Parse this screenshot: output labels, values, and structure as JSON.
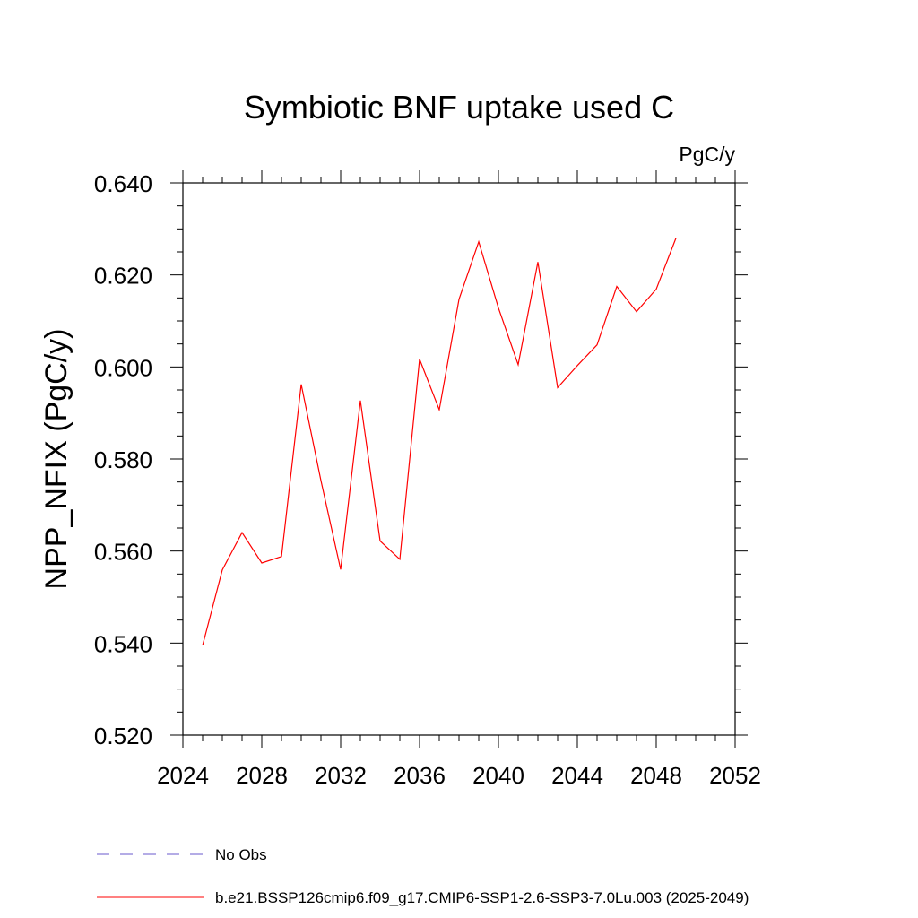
{
  "colors": {
    "series": "#ff0000",
    "obs": "#6a5acd",
    "axis": "#000000"
  },
  "chart_data": {
    "type": "line",
    "title": "Symbiotic BNF uptake used C",
    "units_label": "PgC/y",
    "ylabel": "NPP_NFIX  (PgC/y)",
    "xlabel": "",
    "xlim": [
      2024,
      2052
    ],
    "ylim": [
      0.52,
      0.64
    ],
    "x_ticks": [
      2024,
      2028,
      2032,
      2036,
      2040,
      2044,
      2048,
      2052
    ],
    "x_tick_labels": [
      "2024",
      "2028",
      "2032",
      "2036",
      "2040",
      "2044",
      "2048",
      "2052"
    ],
    "y_ticks": [
      0.52,
      0.54,
      0.56,
      0.58,
      0.6,
      0.62,
      0.64
    ],
    "y_tick_labels": [
      "0.520",
      "0.540",
      "0.560",
      "0.580",
      "0.600",
      "0.620",
      "0.640"
    ],
    "x_minor_step": 1,
    "y_minor_step": 0.005,
    "grid": false,
    "legend_position": "bottom-left, below plot",
    "series": [
      {
        "name": "b.e21.BSSP126cmip6.f09_g17.CMIP6-SSP1-2.6-SSP3-7.0Lu.003 (2025-2049)",
        "style": "solid",
        "x": [
          2025,
          2026,
          2027,
          2028,
          2029,
          2030,
          2031,
          2032,
          2033,
          2034,
          2035,
          2036,
          2037,
          2038,
          2039,
          2040,
          2041,
          2042,
          2043,
          2044,
          2045,
          2046,
          2047,
          2048,
          2049
        ],
        "y": [
          0.5395,
          0.5559,
          0.564,
          0.5574,
          0.5588,
          0.5962,
          0.5753,
          0.556,
          0.5927,
          0.5622,
          0.5582,
          0.6017,
          0.5907,
          0.6147,
          0.6272,
          0.6128,
          0.6005,
          0.6228,
          0.5955,
          0.6003,
          0.6048,
          0.6175,
          0.612,
          0.6169,
          0.628
        ]
      }
    ],
    "legend": [
      {
        "label": "No Obs",
        "style": "dashed"
      },
      {
        "label": "b.e21.BSSP126cmip6.f09_g17.CMIP6-SSP1-2.6-SSP3-7.0Lu.003 (2025-2049)",
        "style": "solid"
      }
    ]
  }
}
